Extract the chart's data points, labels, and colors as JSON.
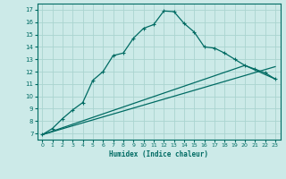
{
  "xlabel": "Humidex (Indice chaleur)",
  "bg_color": "#cceae8",
  "grid_color": "#aad4d0",
  "line_color": "#006b63",
  "xlim": [
    -0.5,
    23.5
  ],
  "ylim": [
    6.5,
    17.5
  ],
  "xticks": [
    0,
    1,
    2,
    3,
    4,
    5,
    6,
    7,
    8,
    9,
    10,
    11,
    12,
    13,
    14,
    15,
    16,
    17,
    18,
    19,
    20,
    21,
    22,
    23
  ],
  "yticks": [
    7,
    8,
    9,
    10,
    11,
    12,
    13,
    14,
    15,
    16,
    17
  ],
  "line1_x": [
    0,
    1,
    2,
    3,
    4,
    5,
    6,
    7,
    8,
    9,
    10,
    11,
    12,
    13,
    14,
    15,
    16,
    17,
    18,
    19,
    20,
    21,
    22,
    23
  ],
  "line1_y": [
    6.9,
    7.4,
    8.2,
    8.9,
    9.5,
    11.3,
    12.0,
    13.3,
    13.5,
    14.7,
    15.5,
    15.8,
    16.9,
    16.85,
    15.9,
    15.2,
    14.0,
    13.9,
    13.5,
    13.0,
    12.5,
    12.2,
    11.9,
    11.4
  ],
  "line2_x": [
    0,
    23
  ],
  "line2_y": [
    6.9,
    12.4
  ],
  "line3_x": [
    0,
    20,
    23
  ],
  "line3_y": [
    6.9,
    12.5,
    11.4
  ],
  "marker": "+",
  "marker_size": 3,
  "line_width": 0.9
}
